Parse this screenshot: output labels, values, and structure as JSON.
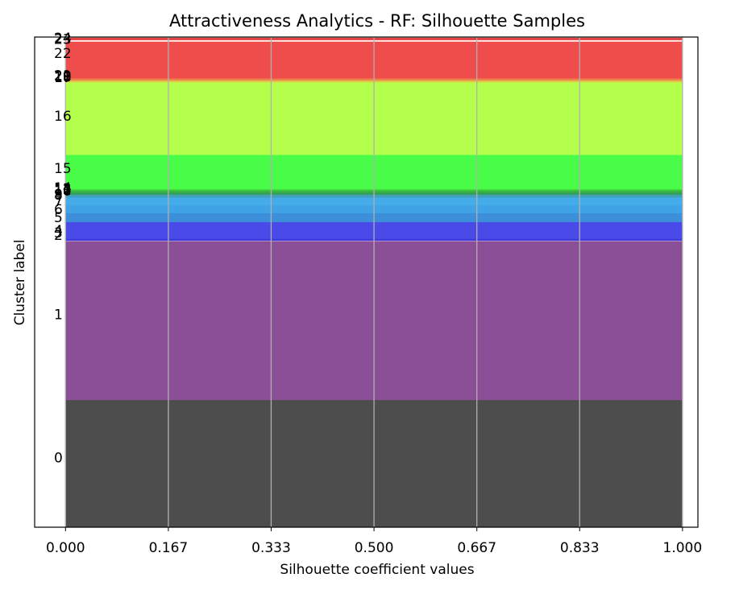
{
  "chart_data": {
    "type": "bar",
    "title": "Attractiveness Analytics - RF: Silhouette Samples",
    "xlabel": "Silhouette coefficient values",
    "ylabel": "Cluster label",
    "xlim": [
      -0.05,
      1.025
    ],
    "ylim": [
      0,
      1
    ],
    "xticks": [
      "0.000",
      "0.167",
      "0.333",
      "0.500",
      "0.667",
      "0.833",
      "1.000"
    ],
    "xtick_values": [
      0,
      0.1667,
      0.3333,
      0.5,
      0.6667,
      0.8333,
      1.0
    ],
    "grid": "x",
    "clusters": [
      {
        "label": "0",
        "value": 1.0,
        "start": 0.0,
        "end": 0.26,
        "color": "#4d4d4d"
      },
      {
        "label": "1",
        "value": 1.0,
        "start": 0.26,
        "end": 0.583,
        "color": "#8b4f98"
      },
      {
        "label": "2",
        "value": 1.0,
        "start": 0.585,
        "end": 0.587,
        "color": "#3d36d9"
      },
      {
        "label": "3",
        "value": 1.0,
        "start": 0.587,
        "end": 0.589,
        "color": "#3f3fe0"
      },
      {
        "label": "4",
        "value": 1.0,
        "start": 0.589,
        "end": 0.623,
        "color": "#4a4ae8"
      },
      {
        "label": "5",
        "value": 1.0,
        "start": 0.623,
        "end": 0.641,
        "color": "#3c8fd8"
      },
      {
        "label": "6",
        "value": 1.0,
        "start": 0.641,
        "end": 0.657,
        "color": "#3fa3e6"
      },
      {
        "label": "7",
        "value": 1.0,
        "start": 0.657,
        "end": 0.673,
        "color": "#45acea"
      },
      {
        "label": "8",
        "value": 1.0,
        "start": 0.673,
        "end": 0.676,
        "color": "#3aa0c4"
      },
      {
        "label": "9",
        "value": 1.0,
        "start": 0.676,
        "end": 0.679,
        "color": "#4aa0aa"
      },
      {
        "label": "10",
        "value": 1.0,
        "start": 0.679,
        "end": 0.682,
        "color": "#2fa060"
      },
      {
        "label": "11",
        "value": 1.0,
        "start": 0.682,
        "end": 0.684,
        "color": "#3aa850"
      },
      {
        "label": "12",
        "value": 1.0,
        "start": 0.684,
        "end": 0.686,
        "color": "#33b33a"
      },
      {
        "label": "13",
        "value": 1.0,
        "start": 0.686,
        "end": 0.688,
        "color": "#3ec43e"
      },
      {
        "label": "14",
        "value": 1.0,
        "start": 0.688,
        "end": 0.69,
        "color": "#46d046"
      },
      {
        "label": "15",
        "value": 1.0,
        "start": 0.69,
        "end": 0.76,
        "color": "#48fc48"
      },
      {
        "label": "16",
        "value": 1.0,
        "start": 0.76,
        "end": 0.907,
        "color": "#b4ff4b"
      },
      {
        "label": "17",
        "value": 1.0,
        "start": 0.907,
        "end": 0.909,
        "color": "#d0e84a"
      },
      {
        "label": "18",
        "value": 1.0,
        "start": 0.909,
        "end": 0.911,
        "color": "#e0c84a"
      },
      {
        "label": "19",
        "value": 1.0,
        "start": 0.911,
        "end": 0.913,
        "color": "#e8a04a"
      },
      {
        "label": "20",
        "value": 1.0,
        "start": 0.913,
        "end": 0.915,
        "color": "#ec804a"
      },
      {
        "label": "21",
        "value": 1.0,
        "start": 0.915,
        "end": 0.917,
        "color": "#ee6a4a"
      },
      {
        "label": "22",
        "value": 1.0,
        "start": 0.917,
        "end": 0.99,
        "color": "#ef4c4c"
      },
      {
        "label": "23",
        "value": 1.0,
        "start": 0.994,
        "end": 0.996,
        "color": "#e84848"
      },
      {
        "label": "24",
        "value": 1.0,
        "start": 0.996,
        "end": 0.998,
        "color": "#e04444"
      }
    ],
    "label_positions": {
      "0": 0.142,
      "1": 0.434,
      "2": 0.596,
      "3": 0.601,
      "4": 0.606,
      "5": 0.632,
      "6": 0.649,
      "7": 0.665,
      "8": 0.678,
      "9": 0.68,
      "10": 0.686,
      "11": 0.688,
      "12": 0.69,
      "13": 0.691,
      "14": 0.693,
      "15": 0.732,
      "16": 0.839,
      "17": 0.918,
      "18": 0.919,
      "19": 0.92,
      "20": 0.921,
      "21": 0.922,
      "22": 0.967,
      "23": 0.996,
      "24": 0.998
    }
  }
}
